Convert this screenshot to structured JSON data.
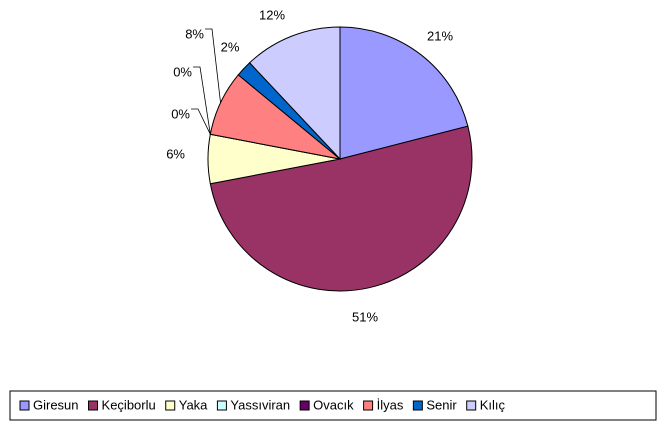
{
  "chart_data": {
    "type": "pie",
    "categories": [
      "Giresun",
      "Keçiborlu",
      "Yaka",
      "Yassıviran",
      "Ovacık",
      "İlyas",
      "Senir",
      "Kılıç"
    ],
    "values": [
      21,
      51,
      6,
      0,
      0,
      8,
      2,
      12
    ],
    "value_labels": [
      "21%",
      "51%",
      "6%",
      "0%",
      "0%",
      "8%",
      "2%",
      "12%"
    ],
    "colors": [
      "#9999FF",
      "#993366",
      "#FFFFCC",
      "#CCFFFF",
      "#660066",
      "#FF8080",
      "#0066CC",
      "#CCCCFF"
    ],
    "legend": "bottom"
  }
}
